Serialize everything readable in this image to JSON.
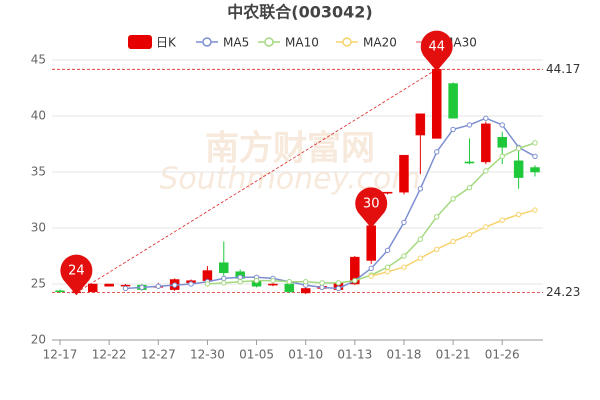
{
  "chart_data": {
    "type": "candlestick",
    "title": "中农联合(003042)",
    "categories": [
      "12-17",
      null,
      null,
      "12-22",
      null,
      null,
      "12-27",
      null,
      null,
      "12-30",
      null,
      null,
      "01-05",
      null,
      null,
      "01-10",
      null,
      null,
      "01-13",
      null,
      null,
      "01-18",
      null,
      null,
      "01-21",
      null,
      null,
      "01-26",
      null,
      null
    ],
    "candle_name": "日K",
    "up_color": "#e60000",
    "down_color": "#1ec83a",
    "open": [
      24.4,
      24.3,
      24.3,
      24.8,
      24.9,
      24.9,
      24.7,
      24.5,
      25.1,
      25.3,
      26.9,
      26.1,
      25.3,
      24.9,
      25.0,
      24.2,
      24.6,
      24.5,
      25.0,
      27.1,
      33.1,
      33.2,
      38.3,
      38.0,
      42.9,
      35.9,
      35.9,
      38.1,
      36.0,
      35.4
    ],
    "high": [
      24.5,
      24.4,
      25.0,
      25.0,
      25.0,
      25.0,
      25.1,
      25.5,
      25.4,
      26.6,
      28.8,
      26.3,
      25.4,
      25.1,
      25.2,
      24.7,
      24.9,
      25.2,
      27.5,
      30.3,
      33.2,
      36.5,
      40.2,
      44.17,
      43.0,
      38.0,
      39.5,
      38.6,
      37.0,
      35.6
    ],
    "low": [
      24.2,
      24.23,
      24.3,
      24.8,
      24.8,
      24.4,
      24.6,
      24.4,
      25.0,
      25.1,
      25.6,
      25.3,
      24.7,
      24.8,
      24.2,
      24.1,
      24.5,
      24.4,
      24.9,
      26.8,
      33.0,
      33.0,
      34.8,
      38.0,
      39.8,
      35.7,
      35.7,
      35.7,
      33.5,
      34.6
    ],
    "close": [
      24.3,
      24.3,
      25.0,
      25.0,
      24.9,
      24.5,
      24.8,
      25.4,
      25.3,
      26.2,
      26.0,
      25.5,
      24.8,
      25.0,
      24.3,
      24.6,
      24.8,
      25.1,
      27.4,
      30.2,
      33.2,
      36.5,
      40.2,
      44.17,
      39.8,
      35.8,
      39.3,
      37.2,
      34.5,
      35.0
    ],
    "series": [
      {
        "name": "MA5",
        "color": "#7d8fd0",
        "values": [
          null,
          null,
          null,
          null,
          24.6,
          24.7,
          24.8,
          24.9,
          25.0,
          25.2,
          25.5,
          25.6,
          25.6,
          25.5,
          25.2,
          24.9,
          24.7,
          24.6,
          25.3,
          26.4,
          28.0,
          30.5,
          33.5,
          36.8,
          38.8,
          39.2,
          39.8,
          39.2,
          37.2,
          36.4
        ]
      },
      {
        "name": "MA10",
        "color": "#a3d97f",
        "values": [
          null,
          null,
          null,
          null,
          null,
          null,
          null,
          null,
          null,
          25.0,
          25.1,
          25.2,
          25.3,
          25.3,
          25.2,
          25.2,
          25.1,
          25.1,
          25.3,
          25.8,
          26.5,
          27.5,
          29.0,
          31.0,
          32.6,
          33.6,
          35.1,
          36.4,
          37.1,
          37.6
        ]
      },
      {
        "name": "MA20",
        "color": "#f6d36c",
        "values": [
          null,
          null,
          null,
          null,
          null,
          null,
          null,
          null,
          null,
          null,
          null,
          null,
          null,
          null,
          null,
          null,
          null,
          null,
          null,
          25.7,
          26.1,
          26.5,
          27.3,
          28.1,
          28.8,
          29.4,
          30.1,
          30.7,
          31.2,
          31.6
        ]
      },
      {
        "name": "MA30",
        "color": "#ef8b8b",
        "values": [
          null,
          null,
          null,
          null,
          null,
          null,
          null,
          null,
          null,
          null,
          null,
          null,
          null,
          null,
          null,
          null,
          null,
          null,
          null,
          null,
          null,
          null,
          null,
          null,
          null,
          null,
          null,
          null,
          null,
          null
        ]
      }
    ],
    "pin_values": [
      null,
      24,
      null,
      null,
      null,
      null,
      null,
      null,
      null,
      null,
      null,
      null,
      null,
      null,
      null,
      null,
      null,
      null,
      null,
      30,
      null,
      null,
      null,
      44,
      null,
      null,
      null,
      null,
      null,
      null
    ],
    "ref_lines": [
      44.17,
      24.23
    ],
    "ylim": [
      20,
      45
    ],
    "yticks": [
      20,
      25,
      30,
      35,
      40,
      45
    ],
    "grid": true,
    "watermark": "南方财富网",
    "watermark_sub": "Southmoney.com"
  }
}
